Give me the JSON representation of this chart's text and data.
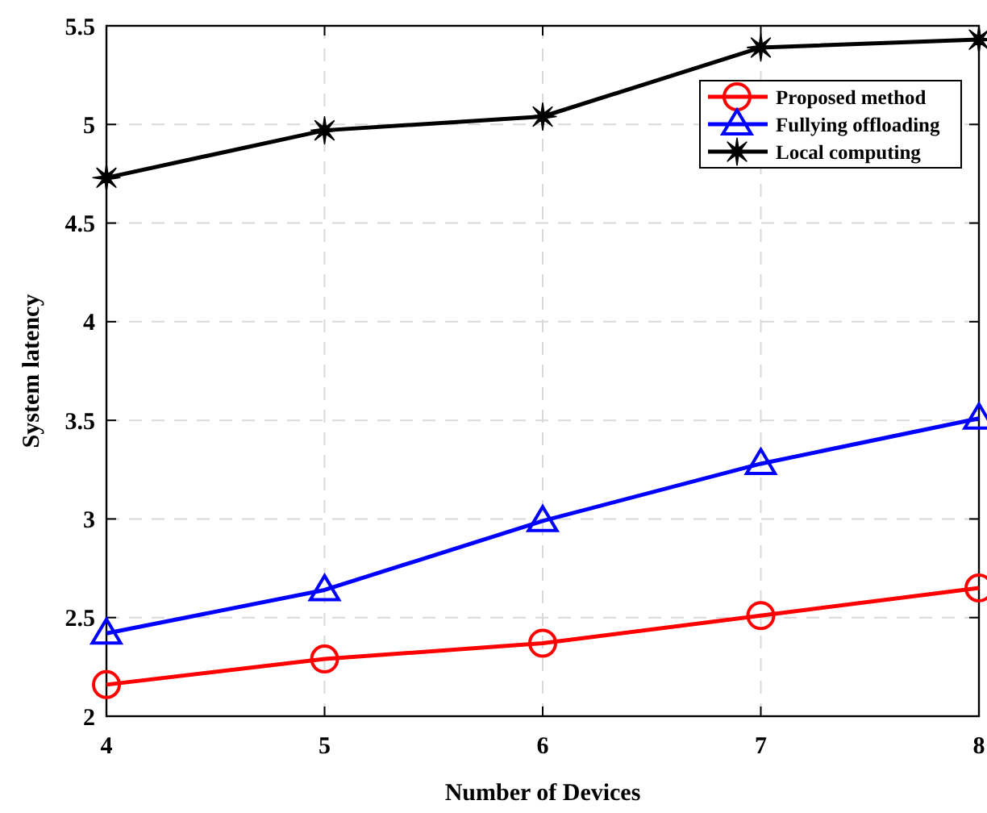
{
  "chart_data": {
    "type": "line",
    "xlabel": "Number of Devices",
    "ylabel": "System latency",
    "x": [
      4,
      5,
      6,
      7,
      8
    ],
    "series": [
      {
        "name": "Proposed method",
        "color": "#ff0000",
        "marker": "circle",
        "values": [
          2.16,
          2.29,
          2.37,
          2.51,
          2.65
        ]
      },
      {
        "name": "Fullying offloading",
        "color": "#0000ff",
        "marker": "triangle",
        "values": [
          2.42,
          2.64,
          2.99,
          3.28,
          3.51
        ]
      },
      {
        "name": "Local computing",
        "color": "#000000",
        "marker": "star",
        "values": [
          4.73,
          4.97,
          5.04,
          5.39,
          5.43
        ]
      }
    ],
    "xlim": [
      4,
      8
    ],
    "xticks": [
      4,
      5,
      6,
      7,
      8
    ],
    "ylim": [
      2,
      5.5
    ],
    "yticks": [
      2,
      2.5,
      3,
      3.5,
      4,
      4.5,
      5,
      5.5
    ],
    "grid": true,
    "legend": "top right",
    "line_style": "solid"
  }
}
